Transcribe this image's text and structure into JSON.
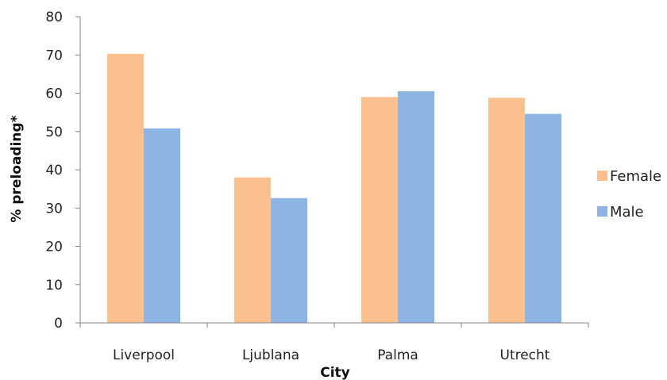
{
  "chart_data": {
    "type": "bar",
    "categories": [
      "Liverpool",
      "Ljublana",
      "Palma",
      "Utrecht"
    ],
    "series": [
      {
        "name": "Female",
        "color": "#FAC090",
        "values": [
          70.3,
          38.0,
          59.0,
          58.8
        ]
      },
      {
        "name": "Male",
        "color": "#8EB4E3",
        "values": [
          50.8,
          32.6,
          60.5,
          54.6
        ]
      }
    ],
    "title": "",
    "xlabel": "City",
    "ylabel": "% preloading*",
    "ylim": [
      0,
      80
    ],
    "yticks": [
      0,
      10,
      20,
      30,
      40,
      50,
      60,
      70,
      80
    ],
    "grid": false,
    "legend": "right"
  }
}
